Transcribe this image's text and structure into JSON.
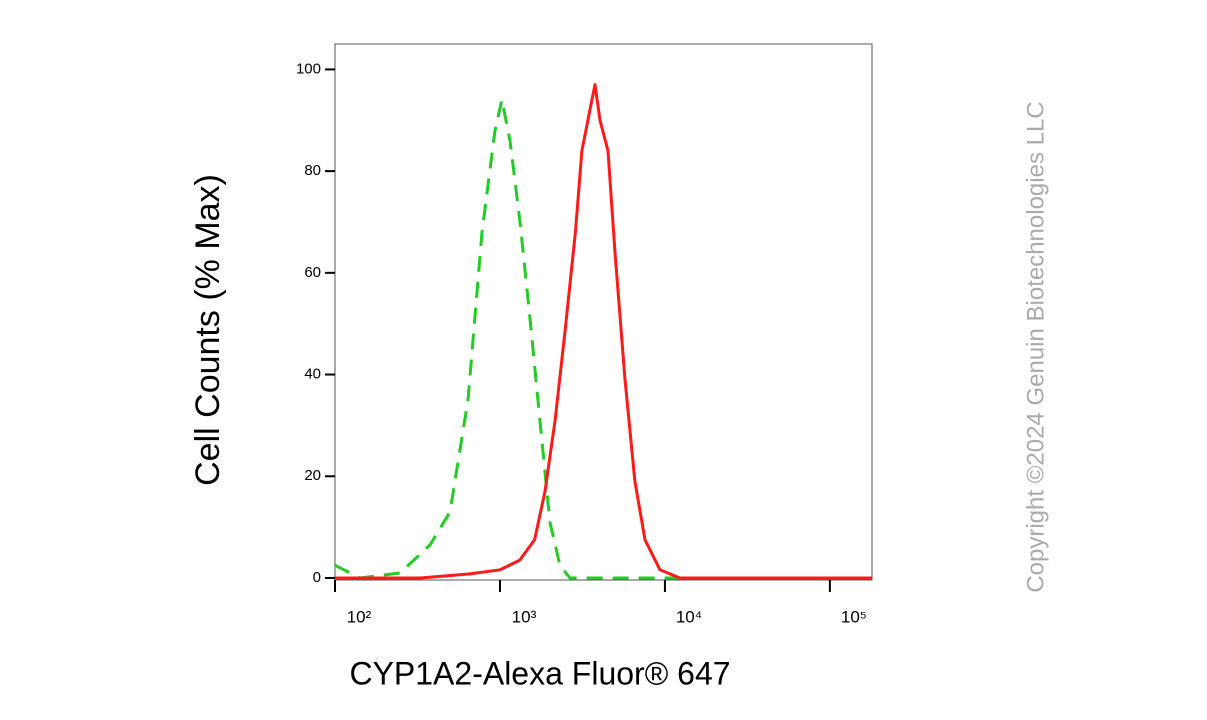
{
  "chart_data": {
    "type": "line",
    "xlog": true,
    "x_label": "CYP1A2-Alexa Fluor® 647",
    "y_label": "Cell Counts (% Max)",
    "watermark": "Copyright ©2024 Genuin Biotechnologies LLC",
    "xlim": [
      100,
      180000
    ],
    "ylim": [
      -0.4,
      105
    ],
    "xticks": [
      {
        "value": 100,
        "label": "10²"
      },
      {
        "value": 1000,
        "label": "10³"
      },
      {
        "value": 10000,
        "label": "10⁴"
      },
      {
        "value": 100000,
        "label": "10⁵"
      }
    ],
    "yticks": [
      0,
      20,
      40,
      60,
      80,
      100
    ],
    "series": [
      {
        "color": "#22cc22",
        "dashed": true,
        "x": [
          100,
          142,
          248,
          377,
          498,
          640,
          778,
          933,
          1028,
          1150,
          1322,
          1520,
          1746,
          2009,
          2310,
          2655,
          180000
        ],
        "values": [
          2.5,
          0,
          1,
          6.5,
          13,
          35,
          68,
          88,
          94,
          86,
          70,
          51,
          31,
          11,
          2.5,
          0,
          0
        ]
      },
      {
        "color": "#ff1a1a",
        "dashed": false,
        "x": [
          100,
          330,
          658,
          1000,
          1318,
          1622,
          1875,
          2160,
          2490,
          2868,
          3140,
          3510,
          3770,
          4040,
          4520,
          4980,
          5730,
          6580,
          7570,
          9330,
          12330,
          180000
        ],
        "values": [
          0,
          0,
          0.8,
          1.6,
          3.5,
          7.5,
          17,
          31,
          49,
          68,
          84,
          92,
          97,
          90,
          84,
          64,
          39,
          19,
          7.5,
          1.6,
          0,
          0
        ]
      }
    ]
  }
}
